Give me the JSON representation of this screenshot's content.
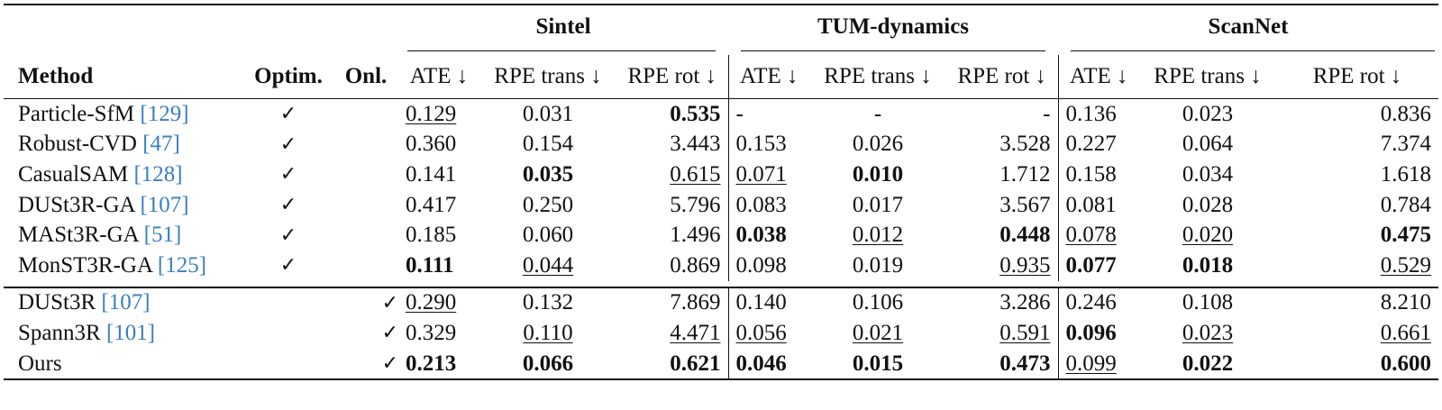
{
  "groups": [
    "Sintel",
    "TUM-dynamics",
    "ScanNet"
  ],
  "headers": {
    "method": "Method",
    "optim": "Optim.",
    "onl": "Onl.",
    "ate": "ATE ↓",
    "rpe_trans": "RPE trans ↓",
    "rpe_rot": "RPE rot ↓"
  },
  "check_symbol": "✓",
  "rows": [
    {
      "name": "Particle-SfM ",
      "cite": "[129]",
      "optim": "✓",
      "onl": "",
      "vals": [
        "0.129",
        "0.031",
        "0.535",
        "-",
        "-",
        "-",
        "0.136",
        "0.023",
        "0.836"
      ]
    },
    {
      "name": "Robust-CVD ",
      "cite": "[47]",
      "optim": "✓",
      "onl": "",
      "vals": [
        "0.360",
        "0.154",
        "3.443",
        "0.153",
        "0.026",
        "3.528",
        "0.227",
        "0.064",
        "7.374"
      ]
    },
    {
      "name": "CasualSAM ",
      "cite": "[128]",
      "optim": "✓",
      "onl": "",
      "vals": [
        "0.141",
        "0.035",
        "0.615",
        "0.071",
        "0.010",
        "1.712",
        "0.158",
        "0.034",
        "1.618"
      ]
    },
    {
      "name": "DUSt3R-GA ",
      "cite": "[107]",
      "optim": "✓",
      "onl": "",
      "vals": [
        "0.417",
        "0.250",
        "5.796",
        "0.083",
        "0.017",
        "3.567",
        "0.081",
        "0.028",
        "0.784"
      ]
    },
    {
      "name": "MASt3R-GA ",
      "cite": "[51]",
      "optim": "✓",
      "onl": "",
      "vals": [
        "0.185",
        "0.060",
        "1.496",
        "0.038",
        "0.012",
        "0.448",
        "0.078",
        "0.020",
        "0.475"
      ]
    },
    {
      "name": "MonST3R-GA ",
      "cite": "[125]",
      "optim": "✓",
      "onl": "",
      "vals": [
        "0.111",
        "0.044",
        "0.869",
        "0.098",
        "0.019",
        "0.935",
        "0.077",
        "0.018",
        "0.529"
      ]
    },
    {
      "name": "DUSt3R ",
      "cite": "[107]",
      "optim": "",
      "onl": "✓",
      "vals": [
        "0.290",
        "0.132",
        "7.869",
        "0.140",
        "0.106",
        "3.286",
        "0.246",
        "0.108",
        "8.210"
      ]
    },
    {
      "name": "Spann3R ",
      "cite": "[101]",
      "optim": "",
      "onl": "✓",
      "vals": [
        "0.329",
        "0.110",
        "4.471",
        "0.056",
        "0.021",
        "0.591",
        "0.096",
        "0.023",
        "0.661"
      ]
    },
    {
      "name": "Ours",
      "cite": "",
      "optim": "",
      "onl": "✓",
      "vals": [
        "0.213",
        "0.066",
        "0.621",
        "0.046",
        "0.015",
        "0.473",
        "0.099",
        "0.022",
        "0.600"
      ]
    }
  ]
}
